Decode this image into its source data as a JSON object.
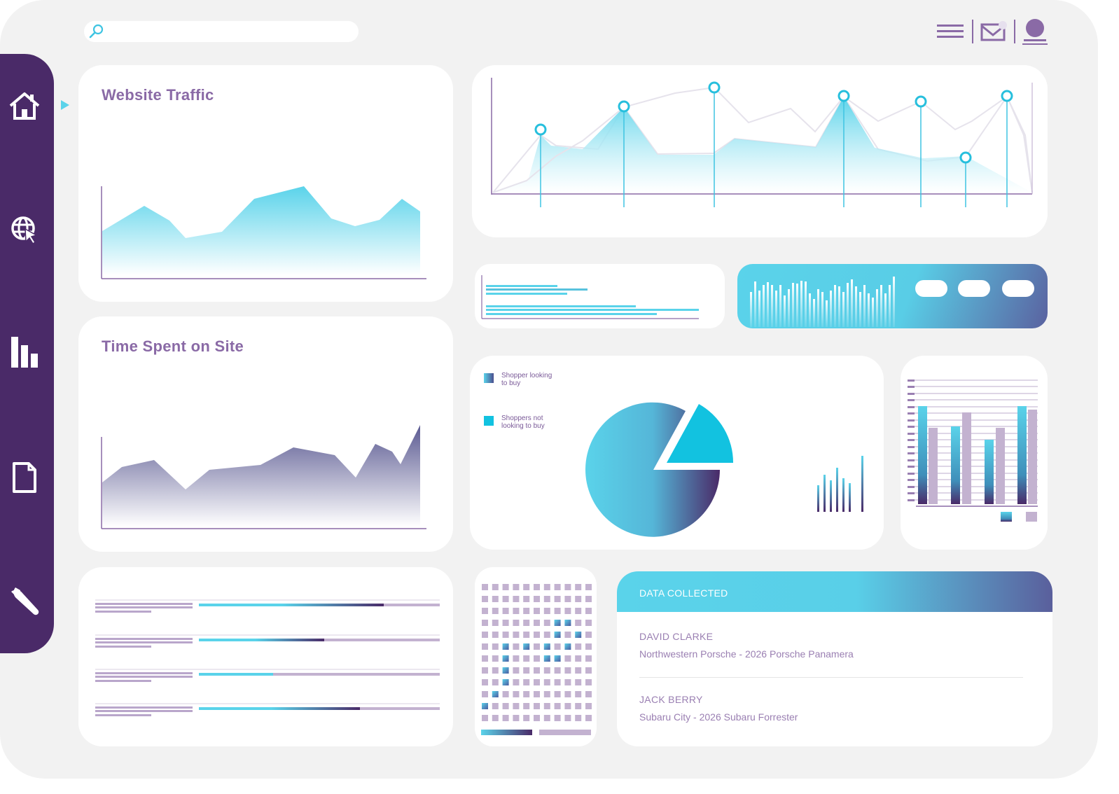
{
  "icons": {
    "search": "search-icon",
    "menu": "menu-icon",
    "mail": "mail-icon",
    "user": "user-icon",
    "home": "home-icon",
    "web": "globe-cursor-icon",
    "analytics": "bar-chart-icon",
    "documents": "document-icon",
    "settings": "wrench-icon",
    "active_indicator": "triangle-right-icon"
  },
  "colors": {
    "sidebar": "#4a2a68",
    "accent_cyan": "#5ad3ea",
    "accent_purple": "#8a6aa6",
    "lavender": "#c3b2d0"
  },
  "traffic_card": {
    "title": "Website Traffic"
  },
  "time_card": {
    "title": "Time Spent on Site"
  },
  "pie_card": {
    "legend": [
      {
        "label": "Shopper looking to buy",
        "line1": "Shopper looking",
        "line2": "to buy"
      },
      {
        "label": "Shoppers not looking to buy",
        "line1": "Shoppers not",
        "line2": "looking to buy"
      }
    ]
  },
  "data_collected": {
    "title": "DATA COLLECTED",
    "entries": [
      {
        "name": "DAVID CLARKE",
        "detail": "Northwestern Porsche - 2026 Porsche Panamera"
      },
      {
        "name": "JACK BERRY",
        "detail": "Subaru City - 2026 Subaru Forrester"
      }
    ]
  }
}
